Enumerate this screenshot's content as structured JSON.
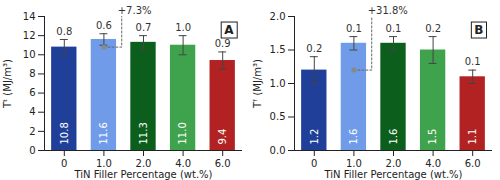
{
  "chart_data": [
    {
      "type": "bar",
      "title": "A",
      "x_label": "TiN Filler Percentage (wt.%)",
      "y_label": "Tᵗ (MJ/m³)",
      "categories": [
        "0",
        "1.0",
        "2.0",
        "4.0",
        "6.0"
      ],
      "values": [
        10.8,
        11.6,
        11.3,
        11.0,
        9.4
      ],
      "value_labels": [
        "10.8",
        "11.6",
        "11.3",
        "11.0",
        "9.4"
      ],
      "errors": [
        0.8,
        0.6,
        0.7,
        1.0,
        0.9
      ],
      "error_labels": [
        "0.8",
        "0.6",
        "0.7",
        "1.0",
        "0.9"
      ],
      "colors": [
        "#1f3f99",
        "#6f9be8",
        "#0b5e1c",
        "#3fa34d",
        "#b22222"
      ],
      "ylim": [
        0,
        14
      ],
      "yticks": [
        0,
        2,
        4,
        6,
        8,
        10,
        12,
        14
      ],
      "data_labels": true,
      "annotations": [
        {
          "text": "+7.3%",
          "from": "0",
          "to": "1.0"
        }
      ]
    },
    {
      "type": "bar",
      "title": "B",
      "x_label": "TiN Filler Percentage (wt.%)",
      "y_label": "Tᶠ (MJ/m³)",
      "categories": [
        "0",
        "1.0",
        "2.0",
        "4.0",
        "6.0"
      ],
      "values": [
        1.2,
        1.6,
        1.6,
        1.5,
        1.1
      ],
      "errors": [
        0.2,
        0.1,
        0.1,
        0.2,
        0.1
      ],
      "colors": [
        "#1f3f99",
        "#6f9be8",
        "#0b5e1c",
        "#3fa34d",
        "#b22222"
      ],
      "ylim": [
        0,
        2.0
      ],
      "yticks": [
        {
          "value": 0,
          "label": "0.0"
        },
        {
          "value": 0.5,
          "label": "0.5"
        },
        {
          "value": 1.0,
          "label": "1.0"
        },
        {
          "value": 1.5,
          "label": "1.5"
        },
        {
          "value": 2.0,
          "label": "2.0"
        }
      ],
      "data_labels": true,
      "annotations": [
        {
          "text": "+31.8%",
          "from": "0",
          "to": "1.0"
        }
      ]
    }
  ]
}
